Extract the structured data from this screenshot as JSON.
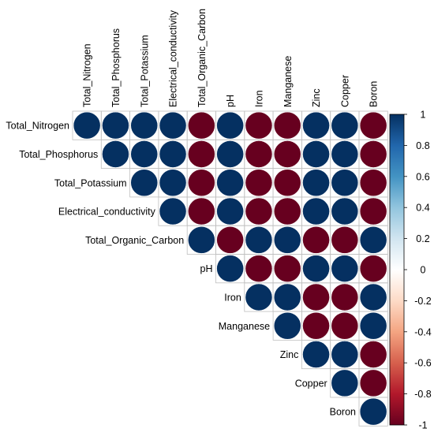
{
  "chart_data": {
    "type": "heatmap",
    "style": "corrplot-circle-upper-triangle",
    "variables": [
      "Total_Nitrogen",
      "Total_Phosphorus",
      "Total_Potassium",
      "Electrical_conductivity",
      "Total_Organic_Carbon",
      "pH",
      "Iron",
      "Manganese",
      "Zinc",
      "Copper",
      "Boron"
    ],
    "matrix": [
      [
        1,
        1,
        1,
        1,
        -1,
        1,
        -1,
        -1,
        1,
        1,
        -1
      ],
      [
        1,
        1,
        1,
        1,
        -1,
        1,
        -1,
        -1,
        1,
        1,
        -1
      ],
      [
        1,
        1,
        1,
        1,
        -1,
        1,
        -1,
        -1,
        1,
        1,
        -1
      ],
      [
        1,
        1,
        1,
        1,
        -1,
        1,
        -1,
        -1,
        1,
        1,
        -1
      ],
      [
        -1,
        -1,
        -1,
        -1,
        1,
        -1,
        1,
        1,
        -1,
        -1,
        1
      ],
      [
        1,
        1,
        1,
        1,
        -1,
        1,
        -1,
        -1,
        1,
        1,
        -1
      ],
      [
        -1,
        -1,
        -1,
        -1,
        1,
        -1,
        1,
        1,
        -1,
        -1,
        1
      ],
      [
        -1,
        -1,
        -1,
        -1,
        1,
        -1,
        1,
        1,
        -1,
        -1,
        1
      ],
      [
        1,
        1,
        1,
        1,
        -1,
        1,
        -1,
        -1,
        1,
        1,
        -1
      ],
      [
        1,
        1,
        1,
        1,
        -1,
        1,
        -1,
        -1,
        1,
        1,
        -1
      ],
      [
        -1,
        -1,
        -1,
        -1,
        1,
        -1,
        1,
        1,
        -1,
        -1,
        1
      ]
    ],
    "colorbar": {
      "min": -1,
      "max": 1,
      "ticks": [
        "-1",
        "-0.8",
        "-0.6",
        "-0.4",
        "-0.2",
        "0",
        "0.2",
        "0.4",
        "0.6",
        "0.8",
        "1"
      ]
    },
    "colors": {
      "positive": "#053061",
      "negative": "#67001f",
      "scale": [
        "#67001f",
        "#b2182b",
        "#d6604d",
        "#f4a582",
        "#fddbc7",
        "#ffffff",
        "#d1e5f0",
        "#92c5de",
        "#4393c3",
        "#2166ac",
        "#053061"
      ],
      "grid": "#bfbfbf"
    }
  }
}
